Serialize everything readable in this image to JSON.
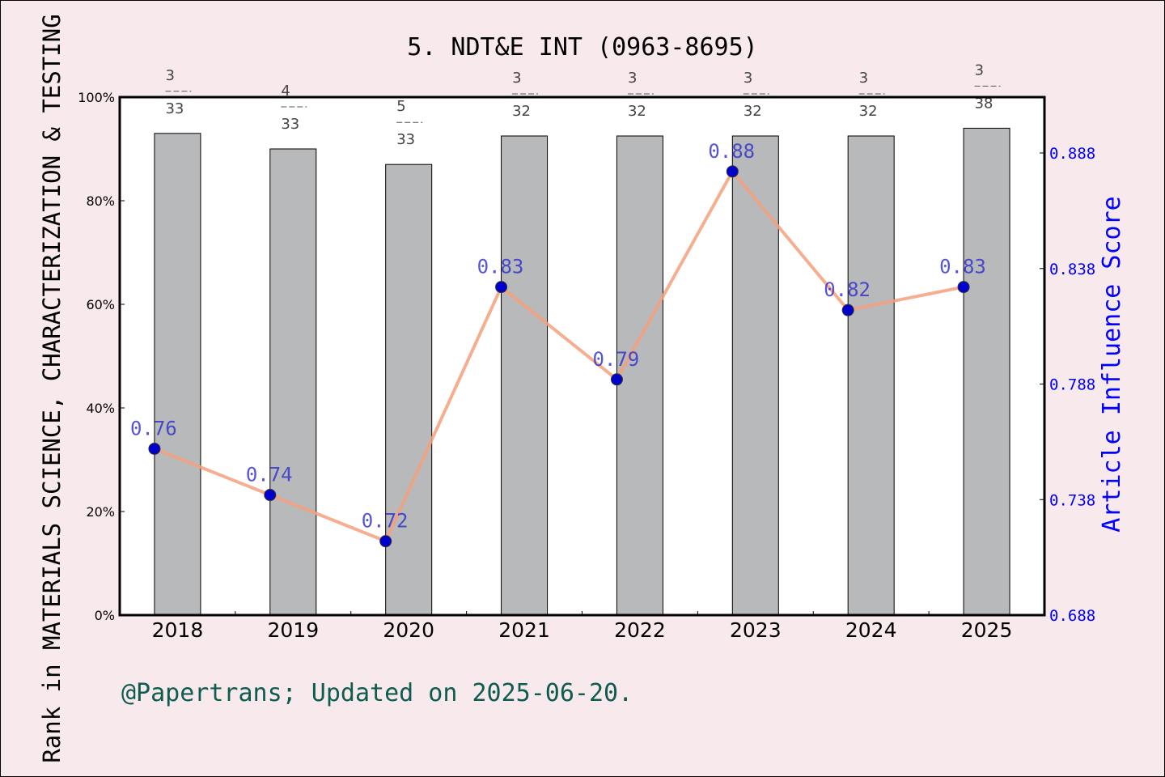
{
  "chart_data": {
    "type": "bar+line",
    "title": "5. NDT&E INT (0963-8695)",
    "categories": [
      "2018",
      "2019",
      "2020",
      "2021",
      "2022",
      "2023",
      "2024",
      "2025"
    ],
    "bar_series": {
      "values_percent": [
        93,
        90,
        87,
        92.5,
        92.5,
        92.5,
        92.5,
        94
      ],
      "rank_labels": [
        {
          "rank": "3",
          "total": "33"
        },
        {
          "rank": "4",
          "total": "33"
        },
        {
          "rank": "5",
          "total": "33"
        },
        {
          "rank": "3",
          "total": "32"
        },
        {
          "rank": "3",
          "total": "32"
        },
        {
          "rank": "3",
          "total": "32"
        },
        {
          "rank": "3",
          "total": "32"
        },
        {
          "rank": "3",
          "total": "38"
        }
      ],
      "color": "#b8b9bb"
    },
    "line_series": {
      "values": [
        0.76,
        0.74,
        0.72,
        0.83,
        0.79,
        0.88,
        0.82,
        0.83
      ],
      "labels": [
        "0.76",
        "0.74",
        "0.72",
        "0.83",
        "0.79",
        "0.88",
        "0.82",
        "0.83"
      ],
      "line_color": "#f4a07e",
      "marker_color": "#0000cc"
    },
    "ylabel_left": "Rank in MATERIALS SCIENCE, CHARACTERIZATION & TESTING",
    "ylabel_right": "Article Influence Score",
    "ylim_left": [
      0,
      100
    ],
    "yticks_left": [
      "0%",
      "20%",
      "40%",
      "60%",
      "80%",
      "100%"
    ],
    "ylim_right": [
      0.688,
      0.912
    ],
    "yticks_right": [
      "0.688",
      "0.738",
      "0.788",
      "0.838",
      "0.888"
    ],
    "right_axis_color": "#0000ff",
    "grid": false
  },
  "footer": "@Papertrans; Updated on 2025-06-20."
}
